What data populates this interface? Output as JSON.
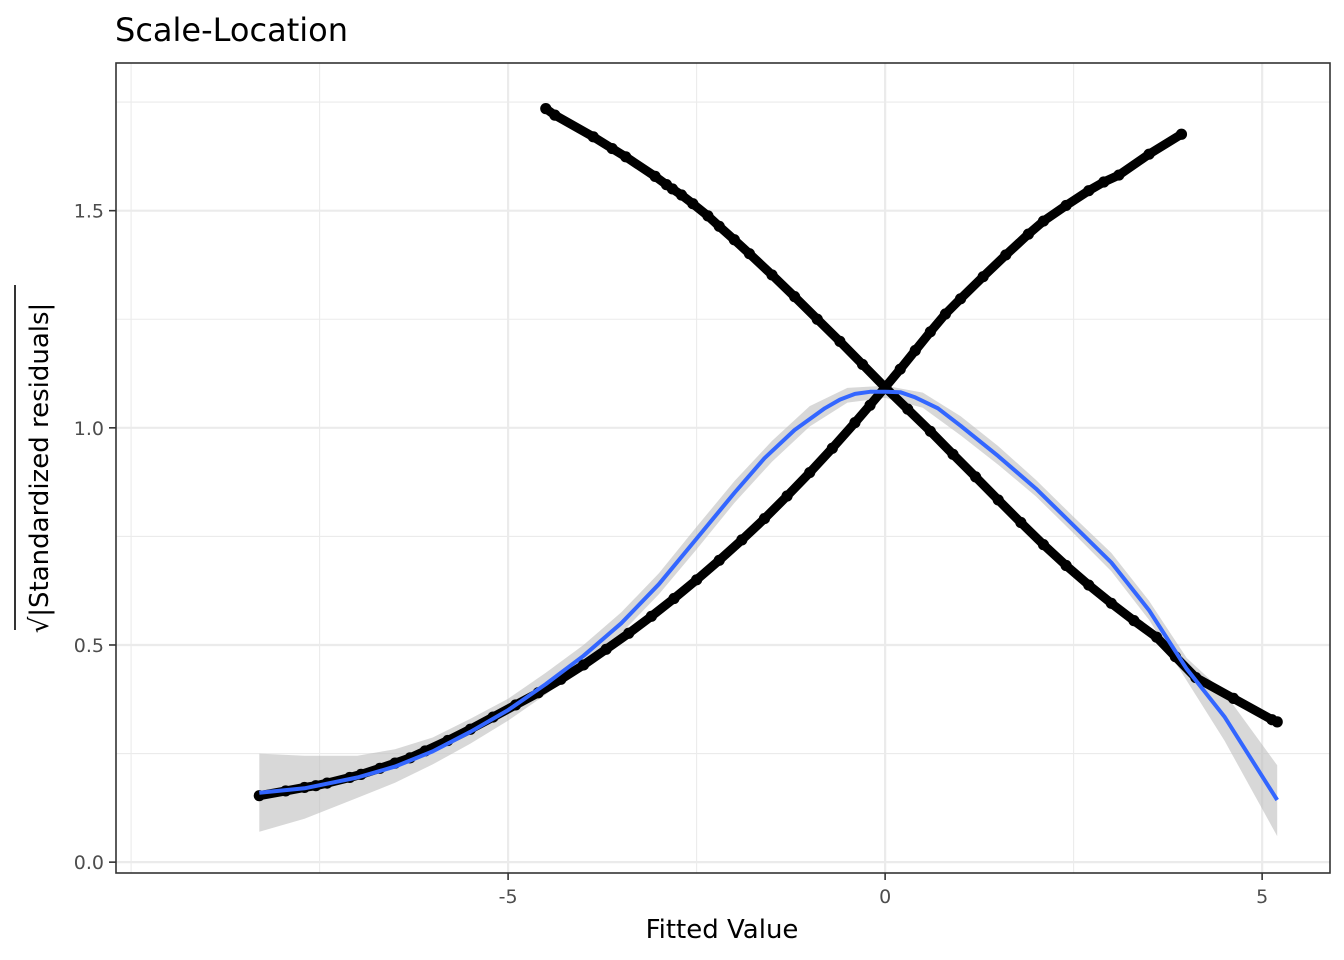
{
  "chart_data": {
    "type": "scatter",
    "title": "Scale-Location",
    "xlabel": "Fitted Value",
    "ylabel_prefix": "√",
    "ylabel": "|Standardized residuals|",
    "xlim": [
      -10.2,
      5.9
    ],
    "ylim": [
      -0.025,
      1.84
    ],
    "x_ticks": [
      -5,
      0,
      5
    ],
    "x_tick_labels": [
      "-5",
      "0",
      "5"
    ],
    "y_ticks": [
      0.0,
      0.5,
      1.0,
      1.5
    ],
    "y_tick_labels": [
      "0.0",
      "0.5",
      "1.0",
      "1.5"
    ],
    "grid": true,
    "colors": {
      "points": "#000000",
      "smooth_line": "#3366FF",
      "confidence_band": "#BEBEBE",
      "grid_major": "#EBEBEB",
      "panel_border": "#333333"
    },
    "series": [
      {
        "kind": "points",
        "branch": "rising",
        "x": [
          -8.3,
          -7.95,
          -7.7,
          -7.55,
          -7.4,
          -7.1,
          -6.95,
          -6.7,
          -6.5,
          -6.3,
          -6.1,
          -5.8,
          -5.5,
          -5.2,
          -4.9,
          -4.6,
          -4.3,
          -4.0,
          -3.7,
          -3.4,
          -3.1,
          -2.8,
          -2.5,
          -2.2,
          -1.9,
          -1.6,
          -1.3,
          -1.0,
          -0.7,
          -0.4,
          -0.2,
          0.0,
          0.2,
          0.4,
          0.6,
          0.8,
          1.0,
          1.3,
          1.6,
          1.9,
          2.1,
          2.4,
          2.7,
          2.9,
          3.1,
          3.5,
          3.93
        ],
        "y": [
          0.153,
          0.164,
          0.172,
          0.176,
          0.182,
          0.195,
          0.202,
          0.216,
          0.228,
          0.24,
          0.256,
          0.28,
          0.306,
          0.334,
          0.362,
          0.39,
          0.421,
          0.454,
          0.49,
          0.527,
          0.566,
          0.607,
          0.65,
          0.695,
          0.742,
          0.791,
          0.843,
          0.897,
          0.953,
          1.012,
          1.052,
          1.093,
          1.135,
          1.178,
          1.221,
          1.262,
          1.297,
          1.348,
          1.398,
          1.446,
          1.476,
          1.512,
          1.546,
          1.566,
          1.582,
          1.63,
          1.676
        ]
      },
      {
        "kind": "points",
        "branch": "falling",
        "x": [
          -4.5,
          -4.38,
          -3.87,
          -3.62,
          -3.44,
          -3.05,
          -2.9,
          -2.82,
          -2.7,
          -2.55,
          -2.35,
          -2.2,
          -2.0,
          -1.8,
          -1.5,
          -1.2,
          -0.9,
          -0.6,
          -0.3,
          0.0,
          0.3,
          0.6,
          0.9,
          1.2,
          1.5,
          1.8,
          2.1,
          2.4,
          2.7,
          3.0,
          3.3,
          3.6,
          3.85,
          4.12,
          4.62,
          5.13,
          5.2
        ],
        "y": [
          1.735,
          1.72,
          1.67,
          1.643,
          1.624,
          1.579,
          1.56,
          1.55,
          1.536,
          1.516,
          1.488,
          1.464,
          1.433,
          1.401,
          1.352,
          1.302,
          1.25,
          1.199,
          1.146,
          1.093,
          1.043,
          0.992,
          0.939,
          0.887,
          0.834,
          0.782,
          0.731,
          0.683,
          0.638,
          0.596,
          0.556,
          0.518,
          0.473,
          0.425,
          0.377,
          0.328,
          0.323
        ]
      },
      {
        "kind": "smooth",
        "name": "",
        "x": [
          -8.3,
          -7.7,
          -7.0,
          -6.5,
          -6.0,
          -5.5,
          -5.0,
          -4.5,
          -4.0,
          -3.5,
          -3.0,
          -2.5,
          -2.0,
          -1.6,
          -1.2,
          -0.8,
          -0.6,
          -0.4,
          -0.2,
          0.0,
          0.2,
          0.4,
          0.7,
          1.0,
          1.5,
          2.0,
          2.5,
          3.0,
          3.5,
          4.0,
          4.5,
          5.2
        ],
        "y": [
          0.16,
          0.17,
          0.195,
          0.22,
          0.255,
          0.3,
          0.35,
          0.41,
          0.475,
          0.55,
          0.64,
          0.745,
          0.85,
          0.93,
          0.995,
          1.045,
          1.065,
          1.078,
          1.083,
          1.083,
          1.082,
          1.07,
          1.045,
          1.005,
          0.935,
          0.86,
          0.775,
          0.69,
          0.58,
          0.445,
          0.335,
          0.143
        ]
      },
      {
        "kind": "band",
        "name": "",
        "x": [
          -8.3,
          -7.7,
          -7.0,
          -6.5,
          -6.0,
          -5.5,
          -5.0,
          -4.5,
          -4.0,
          -3.5,
          -3.0,
          -2.5,
          -2.0,
          -1.5,
          -1.0,
          -0.5,
          0.0,
          0.5,
          1.0,
          1.5,
          2.0,
          2.5,
          3.0,
          3.5,
          4.0,
          4.5,
          5.2
        ],
        "ymin": [
          0.07,
          0.1,
          0.148,
          0.183,
          0.225,
          0.273,
          0.326,
          0.386,
          0.452,
          0.527,
          0.617,
          0.72,
          0.827,
          0.922,
          1.003,
          1.058,
          1.069,
          1.046,
          0.983,
          0.915,
          0.842,
          0.757,
          0.67,
          0.558,
          0.418,
          0.28,
          0.06
        ],
        "ymax": [
          0.25,
          0.245,
          0.245,
          0.26,
          0.287,
          0.33,
          0.376,
          0.436,
          0.5,
          0.575,
          0.665,
          0.772,
          0.877,
          0.97,
          1.05,
          1.092,
          1.097,
          1.081,
          1.027,
          0.958,
          0.88,
          0.795,
          0.712,
          0.602,
          0.47,
          0.39,
          0.223
        ]
      }
    ]
  }
}
